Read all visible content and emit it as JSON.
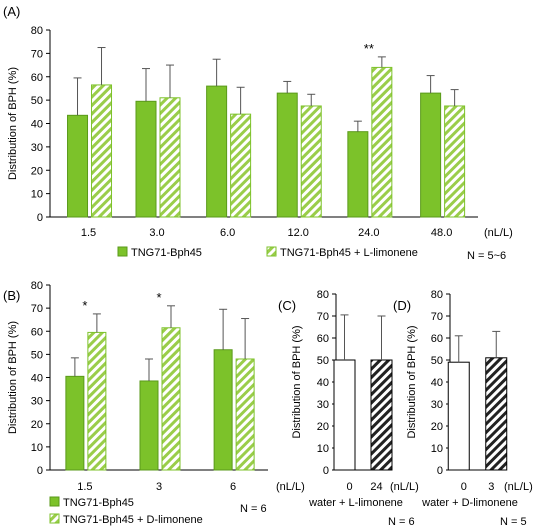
{
  "chart_data": [
    {
      "type": "bar",
      "panel_label": "(A)",
      "ylabel": "Distribution of BPH (%)",
      "xunit": "(nL/L)",
      "categories": [
        "1.5",
        "3.0",
        "6.0",
        "12.0",
        "24.0",
        "48.0"
      ],
      "ylim": [
        0,
        80
      ],
      "yticks": [
        0,
        10,
        20,
        30,
        40,
        50,
        60,
        70,
        80
      ],
      "series": [
        {
          "name": "TNG71-Bph45",
          "values": [
            43.5,
            49.5,
            56,
            53,
            36.5,
            53
          ],
          "errors": [
            16,
            14,
            11.5,
            5,
            4.5,
            7.5
          ],
          "color": "#7cc22a",
          "pattern": "solid"
        },
        {
          "name": "TNG71-Bph45 + L-limonene",
          "values": [
            56.5,
            51,
            44,
            47.5,
            64,
            47.5
          ],
          "errors": [
            16,
            14,
            11.5,
            5,
            4.5,
            7
          ],
          "color": "#7cc22a",
          "pattern": "hatch"
        }
      ],
      "annotations": [
        {
          "category": "24.0",
          "text": "**"
        }
      ],
      "note": "N = 5~6"
    },
    {
      "type": "bar",
      "panel_label": "(B)",
      "ylabel": "Distribution of BPH (%)",
      "xunit": "(nL/L)",
      "categories": [
        "1.5",
        "3",
        "6"
      ],
      "ylim": [
        0,
        80
      ],
      "yticks": [
        0,
        10,
        20,
        30,
        40,
        50,
        60,
        70,
        80
      ],
      "series": [
        {
          "name": "TNG71-Bph45",
          "values": [
            40.5,
            38.5,
            52
          ],
          "errors": [
            8,
            9.5,
            17.5
          ],
          "color": "#7cc22a",
          "pattern": "solid"
        },
        {
          "name": "TNG71-Bph45 + D-limonene",
          "values": [
            59.5,
            61.5,
            48
          ],
          "errors": [
            8,
            9.5,
            17.5
          ],
          "color": "#7cc22a",
          "pattern": "hatch"
        }
      ],
      "annotations": [
        {
          "category": "1.5",
          "text": "*"
        },
        {
          "category": "3",
          "text": "*"
        }
      ],
      "note": "N = 6"
    },
    {
      "type": "bar",
      "panel_label": "(C)",
      "ylabel": "Distribution of BPH (%)",
      "xunit": "(nL/L)",
      "categories": [
        "0",
        "24"
      ],
      "ylim": [
        0,
        80
      ],
      "yticks": [
        0,
        10,
        20,
        30,
        40,
        50,
        60,
        70,
        80
      ],
      "series": [
        {
          "name": "",
          "values": [
            50,
            50
          ],
          "errors": [
            20.5,
            20
          ],
          "colors": [
            "#ffffff",
            "#ffffff"
          ],
          "patterns": [
            "solid",
            "hatch-dark"
          ]
        }
      ],
      "xlabel": "water + L-limonene",
      "note": "N = 6"
    },
    {
      "type": "bar",
      "panel_label": "(D)",
      "ylabel": "Distribution of BPH (%)",
      "xunit": "(nL/L)",
      "categories": [
        "0",
        "3"
      ],
      "ylim": [
        0,
        80
      ],
      "yticks": [
        0,
        10,
        20,
        30,
        40,
        50,
        60,
        70,
        80
      ],
      "series": [
        {
          "name": "",
          "values": [
            49,
            51
          ],
          "errors": [
            12,
            12
          ],
          "colors": [
            "#ffffff",
            "#ffffff"
          ],
          "patterns": [
            "solid",
            "hatch-dark"
          ]
        }
      ],
      "xlabel": "water + D-limonene",
      "note": "N = 5"
    }
  ]
}
